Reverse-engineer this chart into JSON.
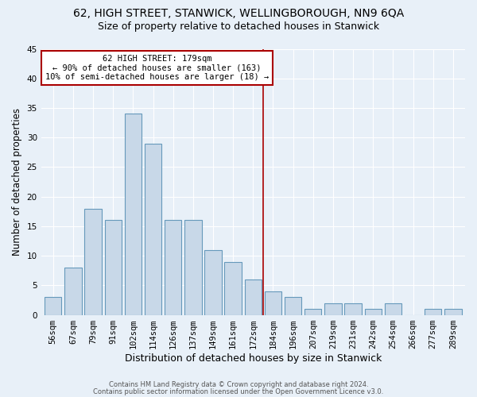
{
  "title1": "62, HIGH STREET, STANWICK, WELLINGBOROUGH, NN9 6QA",
  "title2": "Size of property relative to detached houses in Stanwick",
  "xlabel": "Distribution of detached houses by size in Stanwick",
  "ylabel": "Number of detached properties",
  "categories": [
    "56sqm",
    "67sqm",
    "79sqm",
    "91sqm",
    "102sqm",
    "114sqm",
    "126sqm",
    "137sqm",
    "149sqm",
    "161sqm",
    "172sqm",
    "184sqm",
    "196sqm",
    "207sqm",
    "219sqm",
    "231sqm",
    "242sqm",
    "254sqm",
    "266sqm",
    "277sqm",
    "289sqm"
  ],
  "values": [
    3,
    8,
    18,
    16,
    34,
    29,
    16,
    16,
    11,
    9,
    6,
    4,
    3,
    1,
    2,
    2,
    1,
    2,
    0,
    1,
    1
  ],
  "bar_color": "#c8d8e8",
  "bar_edge_color": "#6699bb",
  "vline_x": 10.5,
  "vline_color": "#aa0000",
  "annotation_text": "62 HIGH STREET: 179sqm\n← 90% of detached houses are smaller (163)\n10% of semi-detached houses are larger (18) →",
  "annotation_box_color": "#ffffff",
  "annotation_box_edge": "#aa0000",
  "ylim": [
    0,
    45
  ],
  "yticks": [
    0,
    5,
    10,
    15,
    20,
    25,
    30,
    35,
    40,
    45
  ],
  "background_color": "#e8f0f8",
  "footer1": "Contains HM Land Registry data © Crown copyright and database right 2024.",
  "footer2": "Contains public sector information licensed under the Open Government Licence v3.0.",
  "title1_fontsize": 10,
  "title2_fontsize": 9,
  "xlabel_fontsize": 9,
  "ylabel_fontsize": 8.5,
  "tick_fontsize": 7.5,
  "footer_fontsize": 6,
  "annot_fontsize": 7.5
}
